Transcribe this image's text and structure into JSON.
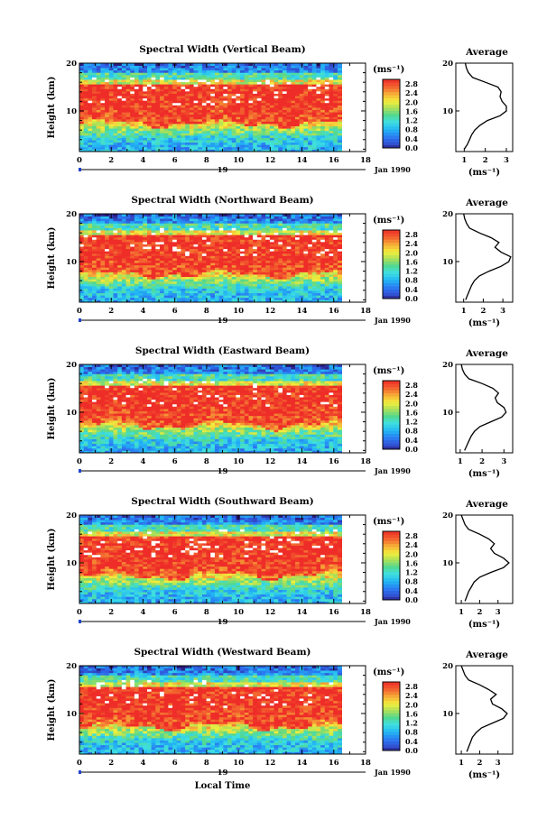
{
  "chart_data": [
    {
      "type": "heatmap",
      "title": "Spectral Width (Vertical Beam)",
      "ylabel": "Height (km)",
      "xticks": [
        "0",
        "2",
        "4",
        "6",
        "8",
        "10",
        "12",
        "14",
        "16",
        "18"
      ],
      "yticks": [
        "10",
        "20"
      ],
      "xlim": [
        0,
        18
      ],
      "ylim": [
        1.5,
        20
      ],
      "data_end_hour": 16.5,
      "date_day": "19",
      "date_label": "Jan 1990",
      "colorbar": {
        "label": "(ms⁻¹)",
        "ticks": [
          "0.0",
          "0.4",
          "0.8",
          "1.2",
          "1.6",
          "2.0",
          "2.4",
          "2.8"
        ],
        "range": [
          0,
          3.0
        ]
      },
      "average": {
        "title": "Average",
        "xlabel": "(ms⁻¹)",
        "xticks": [
          "1",
          "2",
          "3"
        ],
        "xlim": [
          0.6,
          3.3
        ],
        "heights": [
          2,
          3,
          4,
          5,
          6,
          7,
          8,
          9,
          10,
          11,
          12,
          13,
          14,
          15,
          16,
          17,
          18,
          19,
          20
        ],
        "values": [
          1.0,
          1.15,
          1.25,
          1.35,
          1.5,
          1.75,
          2.1,
          2.7,
          3.0,
          3.0,
          2.8,
          2.7,
          2.75,
          2.6,
          2.0,
          1.4,
          1.2,
          1.1,
          1.05
        ]
      }
    },
    {
      "type": "heatmap",
      "title": "Spectral Width (Northward Beam)",
      "ylabel": "Height (km)",
      "xticks": [
        "0",
        "2",
        "4",
        "6",
        "8",
        "10",
        "12",
        "14",
        "16",
        "18"
      ],
      "yticks": [
        "10",
        "20"
      ],
      "xlim": [
        0,
        18
      ],
      "ylim": [
        1.5,
        20
      ],
      "data_end_hour": 16.5,
      "date_day": "19",
      "date_label": "Jan 1990",
      "colorbar": {
        "label": "(ms⁻¹)",
        "ticks": [
          "0.0",
          "0.4",
          "0.8",
          "1.2",
          "1.6",
          "2.0",
          "2.4",
          "2.8"
        ],
        "range": [
          0,
          3.0
        ]
      },
      "average": {
        "title": "Average",
        "xlabel": "(ms⁻¹)",
        "xticks": [
          "1",
          "2",
          "3"
        ],
        "xlim": [
          0.6,
          3.5
        ],
        "heights": [
          2,
          3,
          4,
          5,
          6,
          7,
          8,
          9,
          10,
          11,
          12,
          13,
          14,
          15,
          16,
          17,
          18,
          19,
          20
        ],
        "values": [
          1.1,
          1.2,
          1.3,
          1.4,
          1.55,
          1.8,
          2.3,
          2.9,
          3.3,
          3.4,
          2.9,
          2.6,
          2.8,
          2.4,
          1.8,
          1.3,
          1.15,
          1.05,
          1.0
        ]
      }
    },
    {
      "type": "heatmap",
      "title": "Spectral Width (Eastward Beam)",
      "ylabel": "Height (km)",
      "xticks": [
        "0",
        "2",
        "4",
        "6",
        "8",
        "10",
        "12",
        "14",
        "16",
        "18"
      ],
      "yticks": [
        "10",
        "20"
      ],
      "xlim": [
        0,
        18
      ],
      "ylim": [
        1.5,
        20
      ],
      "data_end_hour": 16.5,
      "date_day": "19",
      "date_label": "Jan 1990",
      "colorbar": {
        "label": "(ms⁻¹)",
        "ticks": [
          "0.0",
          "0.4",
          "0.8",
          "1.2",
          "1.6",
          "2.0",
          "2.4",
          "2.8"
        ],
        "range": [
          0,
          3.0
        ]
      },
      "average": {
        "title": "Average",
        "xlabel": "(ms⁻¹)",
        "xticks": [
          "1",
          "2",
          "3"
        ],
        "xlim": [
          0.8,
          3.4
        ],
        "heights": [
          2,
          3,
          4,
          5,
          6,
          7,
          8,
          9,
          10,
          11,
          12,
          13,
          14,
          15,
          16,
          17,
          18,
          19,
          20
        ],
        "values": [
          1.2,
          1.3,
          1.4,
          1.5,
          1.65,
          1.9,
          2.4,
          2.9,
          3.1,
          3.0,
          2.7,
          2.6,
          2.75,
          2.5,
          2.0,
          1.4,
          1.2,
          1.1,
          1.05
        ]
      }
    },
    {
      "type": "heatmap",
      "title": "Spectral Width (Southward Beam)",
      "ylabel": "Height (km)",
      "xticks": [
        "0",
        "2",
        "4",
        "6",
        "8",
        "10",
        "12",
        "14",
        "16",
        "18"
      ],
      "yticks": [
        "10",
        "20"
      ],
      "xlim": [
        0,
        18
      ],
      "ylim": [
        1.5,
        20
      ],
      "data_end_hour": 16.5,
      "date_day": "19",
      "date_label": "Jan 1990",
      "colorbar": {
        "label": "(ms⁻¹)",
        "ticks": [
          "0.0",
          "0.4",
          "0.8",
          "1.2",
          "1.6",
          "2.0",
          "2.4",
          "2.8"
        ],
        "range": [
          0,
          3.0
        ]
      },
      "average": {
        "title": "Average",
        "xlabel": "(ms⁻¹)",
        "xticks": [
          "1",
          "2",
          "3"
        ],
        "xlim": [
          0.7,
          3.8
        ],
        "heights": [
          2,
          3,
          4,
          5,
          6,
          7,
          8,
          9,
          10,
          11,
          12,
          13,
          14,
          15,
          16,
          17,
          18,
          19,
          20
        ],
        "values": [
          1.2,
          1.3,
          1.4,
          1.55,
          1.7,
          2.0,
          2.6,
          3.3,
          3.6,
          3.3,
          2.8,
          2.6,
          2.8,
          2.5,
          2.0,
          1.4,
          1.2,
          1.1,
          1.0
        ]
      }
    },
    {
      "type": "heatmap",
      "title": "Spectral Width (Westward Beam)",
      "ylabel": "Height (km)",
      "xticks": [
        "0",
        "2",
        "4",
        "6",
        "8",
        "10",
        "12",
        "14",
        "16",
        "18"
      ],
      "yticks": [
        "10",
        "20"
      ],
      "xlim": [
        0,
        18
      ],
      "ylim": [
        1.5,
        20
      ],
      "data_end_hour": 16.5,
      "date_day": "19",
      "date_label": "Jan 1990",
      "xlabel": "Local Time",
      "colorbar": {
        "label": "(ms⁻¹)",
        "ticks": [
          "0.0",
          "0.4",
          "0.8",
          "1.2",
          "1.6",
          "2.0",
          "2.4",
          "2.8"
        ],
        "range": [
          0,
          3.0
        ]
      },
      "average": {
        "title": "Average",
        "xlabel": "(ms⁻¹)",
        "xticks": [
          "1",
          "2",
          "3"
        ],
        "xlim": [
          0.7,
          3.8
        ],
        "heights": [
          2,
          3,
          4,
          5,
          6,
          7,
          8,
          9,
          10,
          11,
          12,
          13,
          14,
          15,
          16,
          17,
          18,
          19,
          20
        ],
        "values": [
          1.3,
          1.4,
          1.5,
          1.6,
          1.8,
          2.1,
          2.7,
          3.3,
          3.5,
          3.2,
          2.7,
          2.6,
          2.9,
          2.5,
          2.0,
          1.4,
          1.2,
          1.1,
          1.0
        ]
      }
    }
  ]
}
